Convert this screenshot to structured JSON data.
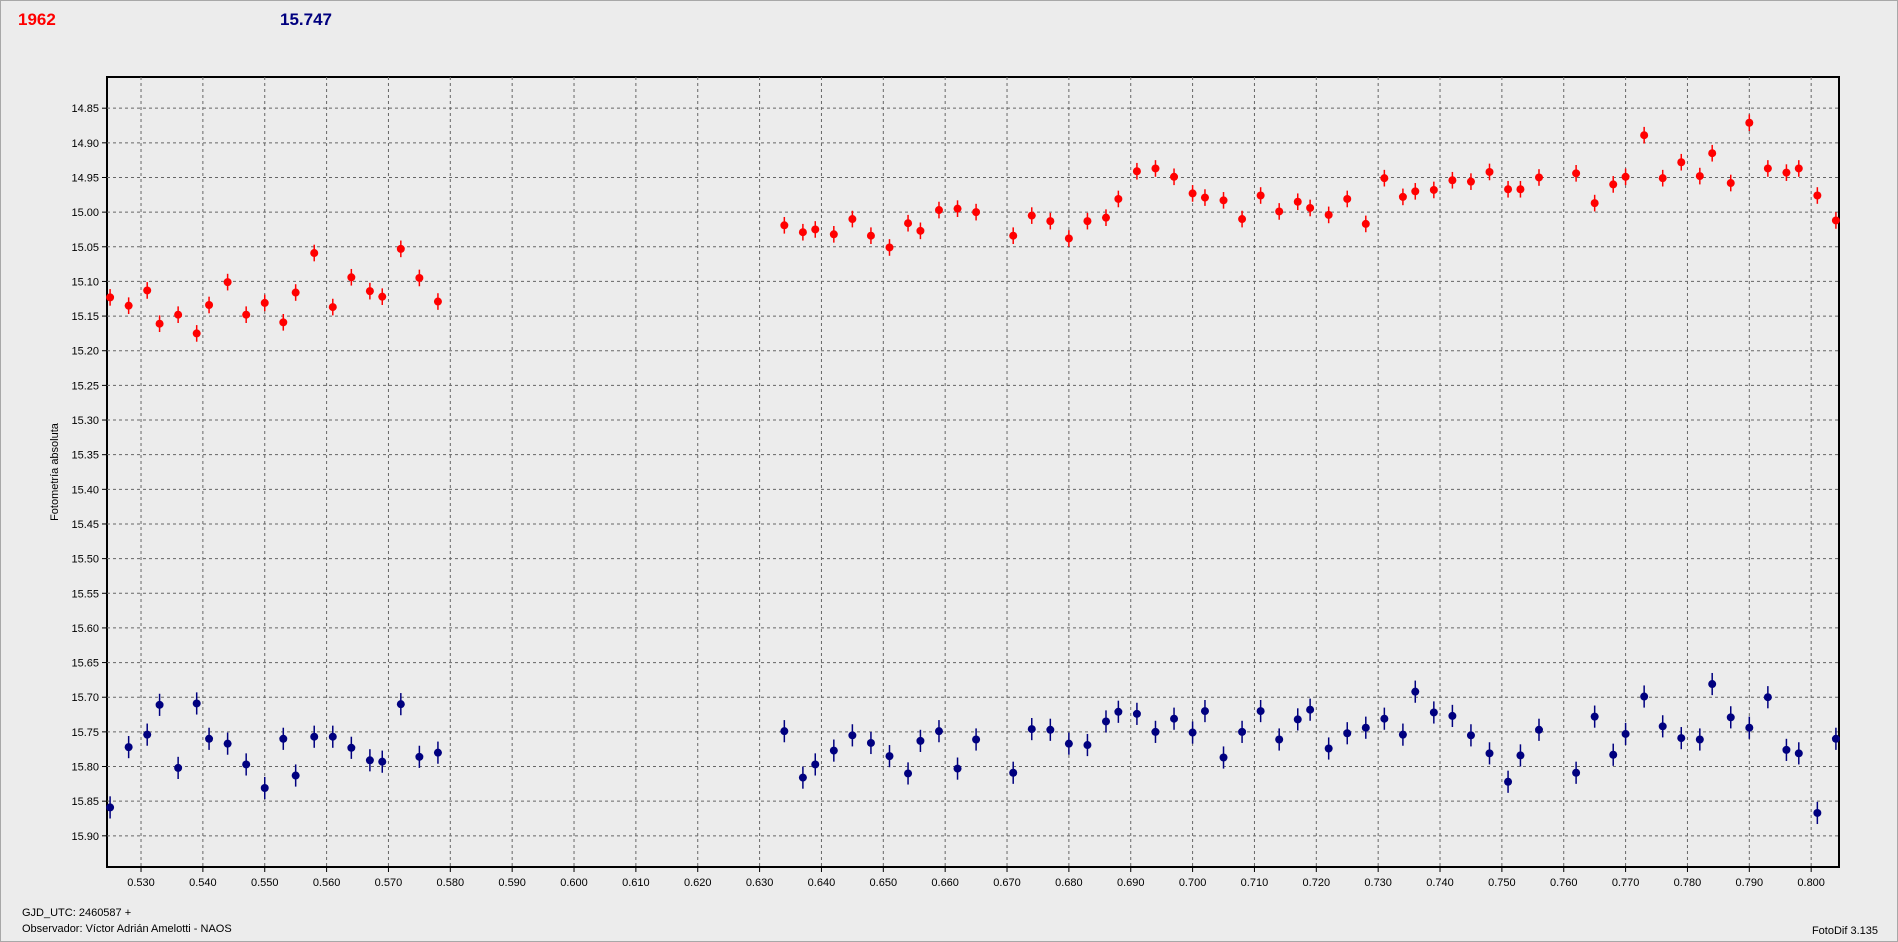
{
  "header": {
    "comparison_label": "1962",
    "target_label": "15.747"
  },
  "footer": {
    "gjd": "GJD_UTC: 2460587 +",
    "observer": "Observador: Víctor Adrián Amelotti - NAOS",
    "software": "FotoDif 3.135"
  },
  "colors": {
    "series_a": "#ff0000",
    "series_b": "#00007f"
  },
  "chart_data": {
    "type": "scatter",
    "title": "",
    "xlabel": "",
    "ylabel": "Fotometría absoluta",
    "xlim": [
      0.5245,
      0.8045
    ],
    "ylim": [
      14.805,
      15.945
    ],
    "y_inverted": true,
    "grid": true,
    "x_ticks": [
      0.53,
      0.54,
      0.55,
      0.56,
      0.57,
      0.58,
      0.59,
      0.6,
      0.61,
      0.62,
      0.63,
      0.64,
      0.65,
      0.66,
      0.67,
      0.68,
      0.69,
      0.7,
      0.71,
      0.72,
      0.73,
      0.74,
      0.75,
      0.76,
      0.77,
      0.78,
      0.79,
      0.8
    ],
    "x_tick_labels": [
      "0.530",
      "0.540",
      "0.550",
      "0.560",
      "0.570",
      "0.580",
      "0.590",
      "0.600",
      "0.610",
      "0.620",
      "0.630",
      "0.640",
      "0.650",
      "0.660",
      "0.670",
      "0.680",
      "0.690",
      "0.700",
      "0.710",
      "0.720",
      "0.730",
      "0.740",
      "0.750",
      "0.760",
      "0.770",
      "0.780",
      "0.790",
      "0.800"
    ],
    "y_ticks": [
      14.85,
      14.9,
      14.95,
      15.0,
      15.05,
      15.1,
      15.15,
      15.2,
      15.25,
      15.3,
      15.35,
      15.4,
      15.45,
      15.5,
      15.55,
      15.6,
      15.65,
      15.7,
      15.75,
      15.8,
      15.85,
      15.9
    ],
    "y_tick_labels": [
      "14.85",
      "14.90",
      "14.95",
      "15.00",
      "15.05",
      "15.10",
      "15.15",
      "15.20",
      "15.25",
      "15.30",
      "15.35",
      "15.40",
      "15.45",
      "15.50",
      "15.55",
      "15.60",
      "15.65",
      "15.70",
      "15.75",
      "15.80",
      "15.85",
      "15.90"
    ],
    "series": [
      {
        "color": "#ff0000",
        "error": 0.012,
        "x": [
          0.525,
          0.528,
          0.531,
          0.533,
          0.536,
          0.539,
          0.541,
          0.544,
          0.547,
          0.55,
          0.553,
          0.555,
          0.558,
          0.561,
          0.564,
          0.567,
          0.569,
          0.572,
          0.575,
          0.578,
          0.634,
          0.637,
          0.639,
          0.642,
          0.645,
          0.648,
          0.651,
          0.654,
          0.656,
          0.659,
          0.662,
          0.665,
          0.671,
          0.674,
          0.677,
          0.68,
          0.683,
          0.686,
          0.688,
          0.691,
          0.694,
          0.697,
          0.7,
          0.702,
          0.705,
          0.708,
          0.711,
          0.714,
          0.717,
          0.719,
          0.722,
          0.725,
          0.728,
          0.731,
          0.734,
          0.736,
          0.739,
          0.742,
          0.745,
          0.748,
          0.751,
          0.753,
          0.756,
          0.762,
          0.765,
          0.768,
          0.77,
          0.773,
          0.776,
          0.779,
          0.782,
          0.784,
          0.787,
          0.79,
          0.793,
          0.796,
          0.798,
          0.801,
          0.804
        ],
        "y": [
          15.123,
          15.135,
          15.113,
          15.161,
          15.148,
          15.175,
          15.134,
          15.101,
          15.148,
          15.131,
          15.159,
          15.116,
          15.059,
          15.137,
          15.094,
          15.114,
          15.122,
          15.053,
          15.095,
          15.129,
          15.019,
          15.029,
          15.025,
          15.032,
          15.01,
          15.034,
          15.051,
          15.016,
          15.027,
          14.997,
          14.995,
          15.0,
          15.034,
          15.005,
          15.013,
          15.038,
          15.013,
          15.008,
          14.981,
          14.941,
          14.937,
          14.949,
          14.973,
          14.979,
          14.983,
          15.01,
          14.976,
          14.999,
          14.985,
          14.994,
          15.004,
          14.981,
          15.017,
          14.951,
          14.978,
          14.97,
          14.968,
          14.954,
          14.956,
          14.942,
          14.967,
          14.967,
          14.95,
          14.944,
          14.987,
          14.96,
          14.949,
          14.889,
          14.951,
          14.928,
          14.948,
          14.915,
          14.958,
          14.871,
          14.937,
          14.943,
          14.937,
          14.976,
          15.012
        ]
      },
      {
        "color": "#00007f",
        "error": 0.016,
        "x": [
          0.525,
          0.528,
          0.531,
          0.533,
          0.536,
          0.539,
          0.541,
          0.544,
          0.547,
          0.55,
          0.553,
          0.555,
          0.558,
          0.561,
          0.564,
          0.567,
          0.569,
          0.572,
          0.575,
          0.578,
          0.634,
          0.637,
          0.639,
          0.642,
          0.645,
          0.648,
          0.651,
          0.654,
          0.656,
          0.659,
          0.662,
          0.665,
          0.671,
          0.674,
          0.677,
          0.68,
          0.683,
          0.686,
          0.688,
          0.691,
          0.694,
          0.697,
          0.7,
          0.702,
          0.705,
          0.708,
          0.711,
          0.714,
          0.717,
          0.719,
          0.722,
          0.725,
          0.728,
          0.731,
          0.734,
          0.736,
          0.739,
          0.742,
          0.745,
          0.748,
          0.751,
          0.753,
          0.756,
          0.762,
          0.765,
          0.768,
          0.77,
          0.773,
          0.776,
          0.779,
          0.782,
          0.784,
          0.787,
          0.79,
          0.793,
          0.796,
          0.798,
          0.801,
          0.804
        ],
        "y": [
          15.859,
          15.772,
          15.754,
          15.711,
          15.802,
          15.709,
          15.76,
          15.767,
          15.797,
          15.831,
          15.76,
          15.813,
          15.757,
          15.757,
          15.773,
          15.791,
          15.793,
          15.71,
          15.786,
          15.78,
          15.749,
          15.816,
          15.797,
          15.777,
          15.755,
          15.766,
          15.785,
          15.81,
          15.763,
          15.749,
          15.803,
          15.761,
          15.809,
          15.746,
          15.747,
          15.767,
          15.769,
          15.735,
          15.721,
          15.724,
          15.75,
          15.731,
          15.751,
          15.72,
          15.787,
          15.75,
          15.72,
          15.761,
          15.732,
          15.718,
          15.774,
          15.752,
          15.744,
          15.731,
          15.754,
          15.692,
          15.722,
          15.727,
          15.755,
          15.781,
          15.822,
          15.784,
          15.747,
          15.809,
          15.728,
          15.783,
          15.753,
          15.699,
          15.742,
          15.759,
          15.761,
          15.681,
          15.729,
          15.744,
          15.7,
          15.776,
          15.781,
          15.867,
          15.76
        ]
      }
    ]
  }
}
